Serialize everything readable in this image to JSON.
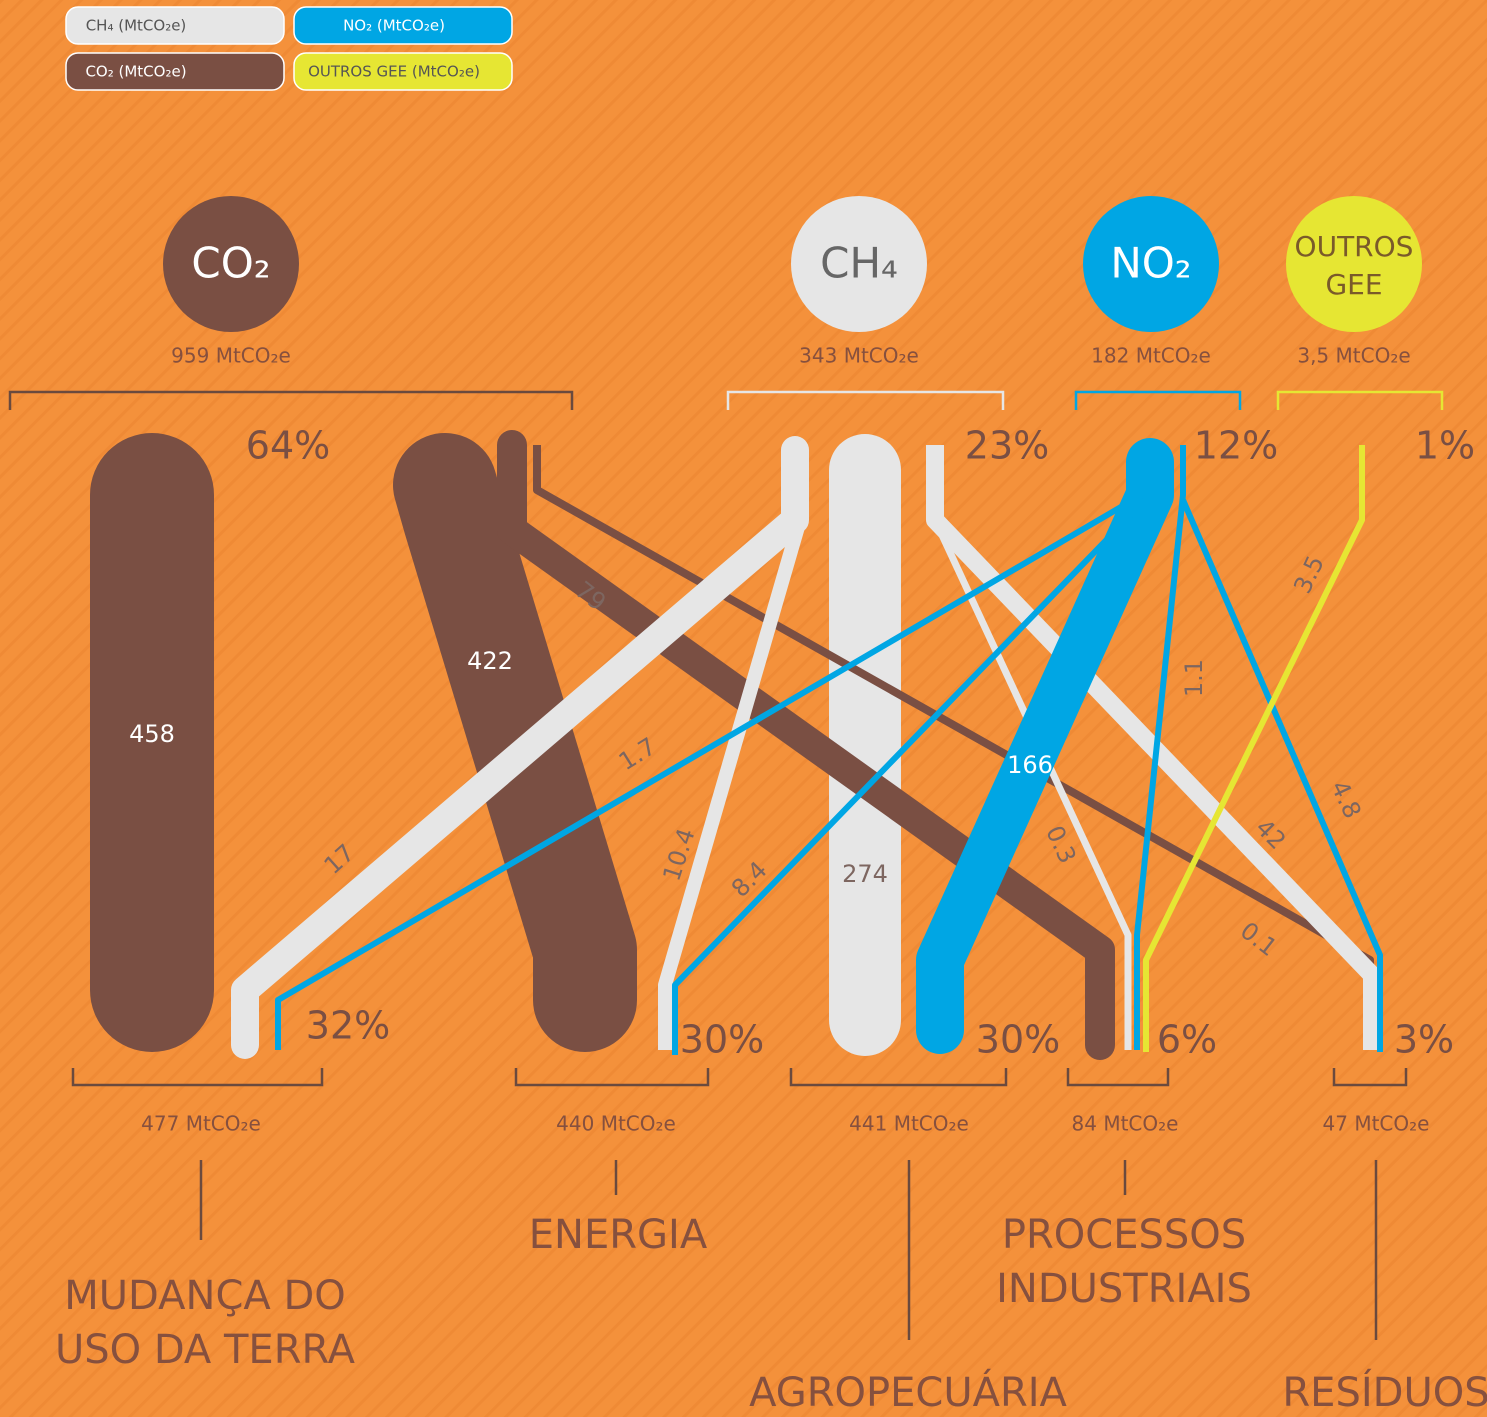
{
  "legend": [
    "CH₄ (MtCO₂e)",
    "CO₂ (MtCO₂e)",
    "NO₂ (MtCO₂e)",
    "OUTROS GEE (MtCO₂e)"
  ],
  "gases": [
    {
      "symbol": [
        "CO₂"
      ],
      "total": "959 MtCO₂e",
      "share": "64%"
    },
    {
      "symbol": [
        "CH₄"
      ],
      "total": "343 MtCO₂e",
      "share": "23%"
    },
    {
      "symbol": [
        "NO₂"
      ],
      "total": "182 MtCO₂e",
      "share": "12%"
    },
    {
      "symbol": [
        "OUTROS",
        "GEE"
      ],
      "total": "3,5 MtCO₂e",
      "share": "1%"
    }
  ],
  "sectors": [
    {
      "name": [
        "MUDANÇA DO",
        "USO DA TERRA"
      ],
      "total": "477 MtCO₂e",
      "share": "32%"
    },
    {
      "name": [
        "ENERGIA"
      ],
      "total": "440 MtCO₂e",
      "share": "30%"
    },
    {
      "name": [
        "AGROPECUÁRIA"
      ],
      "total": "441 MtCO₂e",
      "share": "30%"
    },
    {
      "name": [
        "PROCESSOS",
        "INDUSTRIAIS"
      ],
      "total": "84 MtCO₂e",
      "share": "6%"
    },
    {
      "name": [
        "RESÍDUOS"
      ],
      "total": "47 MtCO₂e",
      "share": "3%"
    }
  ],
  "flows": [
    {
      "label": "458"
    },
    {
      "label": "422"
    },
    {
      "label": "79"
    },
    {
      "label": "0.1"
    },
    {
      "label": "17"
    },
    {
      "label": "10.4"
    },
    {
      "label": "274"
    },
    {
      "label": "0.3"
    },
    {
      "label": "42"
    },
    {
      "label": "1.7"
    },
    {
      "label": "8.4"
    },
    {
      "label": "166"
    },
    {
      "label": "1.1"
    },
    {
      "label": "4.8"
    },
    {
      "label": "3.5"
    }
  ]
}
